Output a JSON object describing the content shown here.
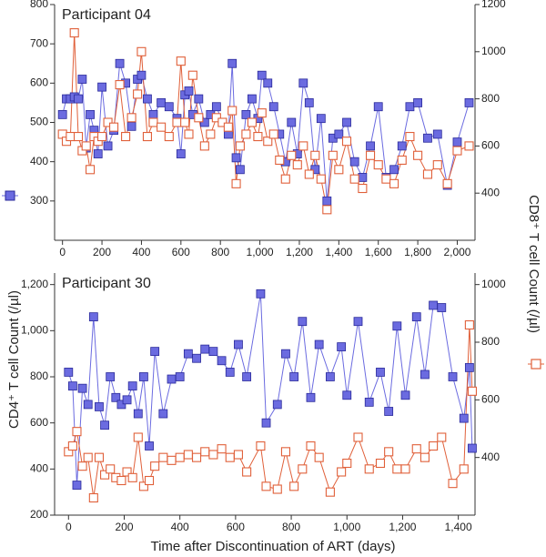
{
  "x_label": "Time after Discontinuation of ART (days)",
  "y_label": "CD4⁺ T cell Count (/µl)",
  "y2_label": "CD8⁺ T cell Count (/µl)",
  "chart_data": [
    {
      "type": "line",
      "title": "Participant 04",
      "x": [
        0,
        20,
        40,
        60,
        80,
        100,
        120,
        140,
        160,
        180,
        200,
        230,
        260,
        290,
        320,
        350,
        380,
        400,
        430,
        460,
        500,
        540,
        580,
        600,
        620,
        640,
        660,
        690,
        720,
        750,
        780,
        810,
        840,
        860,
        880,
        900,
        930,
        960,
        990,
        1010,
        1040,
        1070,
        1100,
        1130,
        1160,
        1190,
        1220,
        1250,
        1280,
        1310,
        1340,
        1370,
        1400,
        1440,
        1480,
        1520,
        1560,
        1600,
        1640,
        1680,
        1720,
        1760,
        1800,
        1850,
        1900,
        1950,
        2000,
        2060
      ],
      "xlim": [
        -40,
        2090
      ],
      "xticks": [
        0,
        200,
        400,
        600,
        800,
        {
          "value": 1000,
          "label": "1,000"
        },
        {
          "value": 1200,
          "label": "1,200"
        },
        {
          "value": 1400,
          "label": "1,400"
        },
        {
          "value": 1600,
          "label": "1,600"
        },
        {
          "value": 1800,
          "label": "1,800"
        },
        {
          "value": 2000,
          "label": "2,000"
        }
      ],
      "ylim": [
        200,
        800
      ],
      "yticks": [
        300,
        400,
        500,
        600,
        700,
        800
      ],
      "y2lim": [
        200,
        1200
      ],
      "y2ticks": [
        400,
        600,
        800,
        1000,
        1200
      ],
      "series": [
        {
          "color": "#6b6be0",
          "marker": "filled-square",
          "values": [
            520,
            560,
            560,
            565,
            560,
            610,
            435,
            520,
            480,
            420,
            590,
            440,
            480,
            650,
            600,
            490,
            610,
            620,
            560,
            520,
            550,
            540,
            510,
            420,
            570,
            580,
            520,
            560,
            500,
            520,
            540,
            500,
            470,
            650,
            410,
            380,
            520,
            560,
            510,
            620,
            600,
            540,
            470,
            400,
            500,
            420,
            600,
            550,
            380,
            510,
            300,
            460,
            470,
            500,
            400,
            360,
            440,
            540,
            360,
            380,
            440,
            540,
            550,
            460,
            470,
            340,
            450,
            550
          ]
        },
        {
          "color": "#e0603a",
          "marker": "open-square",
          "axis": "y2",
          "values": [
            650,
            620,
            640,
            1080,
            640,
            580,
            600,
            500,
            640,
            620,
            640,
            700,
            680,
            860,
            640,
            720,
            820,
            1000,
            640,
            700,
            680,
            640,
            700,
            960,
            700,
            650,
            900,
            720,
            600,
            650,
            720,
            700,
            680,
            750,
            440,
            600,
            650,
            700,
            640,
            740,
            620,
            650,
            540,
            460,
            560,
            520,
            600,
            480,
            560,
            460,
            330,
            560,
            500,
            620,
            460,
            420,
            560,
            520,
            460,
            440,
            540,
            640,
            560,
            480,
            520,
            440,
            580,
            600
          ]
        }
      ]
    },
    {
      "type": "line",
      "title": "Participant 30",
      "x": [
        0,
        15,
        30,
        50,
        70,
        90,
        110,
        130,
        150,
        170,
        190,
        210,
        230,
        250,
        270,
        290,
        310,
        340,
        370,
        400,
        430,
        460,
        490,
        520,
        550,
        580,
        610,
        640,
        690,
        710,
        750,
        780,
        810,
        840,
        870,
        900,
        940,
        980,
        1000,
        1040,
        1080,
        1120,
        1150,
        1180,
        1210,
        1250,
        1280,
        1310,
        1340,
        1380,
        1420,
        1440,
        1450
      ],
      "xlim": [
        -50,
        1460
      ],
      "xticks": [
        0,
        200,
        400,
        600,
        800,
        {
          "value": 1000,
          "label": "1,000"
        },
        {
          "value": 1200,
          "label": "1,200"
        },
        {
          "value": 1400,
          "label": "1,400"
        }
      ],
      "ylim": [
        200,
        1250
      ],
      "yticks": [
        200,
        400,
        600,
        800,
        {
          "value": 1000,
          "label": "1,000"
        },
        {
          "value": 1200,
          "label": "1,200"
        }
      ],
      "y2lim": [
        200,
        1040
      ],
      "y2ticks": [
        400,
        600,
        800,
        1000
      ],
      "series": [
        {
          "color": "#6b6be0",
          "marker": "filled-square",
          "values": [
            820,
            760,
            330,
            750,
            680,
            1060,
            670,
            590,
            800,
            710,
            680,
            700,
            760,
            640,
            800,
            500,
            910,
            640,
            790,
            800,
            900,
            880,
            920,
            910,
            870,
            820,
            940,
            800,
            1160,
            600,
            680,
            900,
            800,
            1040,
            710,
            940,
            800,
            930,
            720,
            1040,
            690,
            820,
            650,
            1020,
            720,
            1060,
            810,
            1110,
            1100,
            800,
            620,
            840,
            490
          ]
        },
        {
          "color": "#e0603a",
          "marker": "open-square",
          "axis": "y2",
          "values": [
            420,
            440,
            490,
            370,
            400,
            260,
            400,
            340,
            360,
            330,
            320,
            350,
            330,
            470,
            300,
            320,
            370,
            400,
            390,
            400,
            410,
            400,
            420,
            410,
            430,
            400,
            410,
            350,
            440,
            300,
            290,
            420,
            300,
            360,
            440,
            400,
            280,
            350,
            380,
            470,
            360,
            380,
            420,
            360,
            360,
            430,
            400,
            440,
            470,
            310,
            360,
            860,
            630
          ]
        }
      ]
    }
  ]
}
